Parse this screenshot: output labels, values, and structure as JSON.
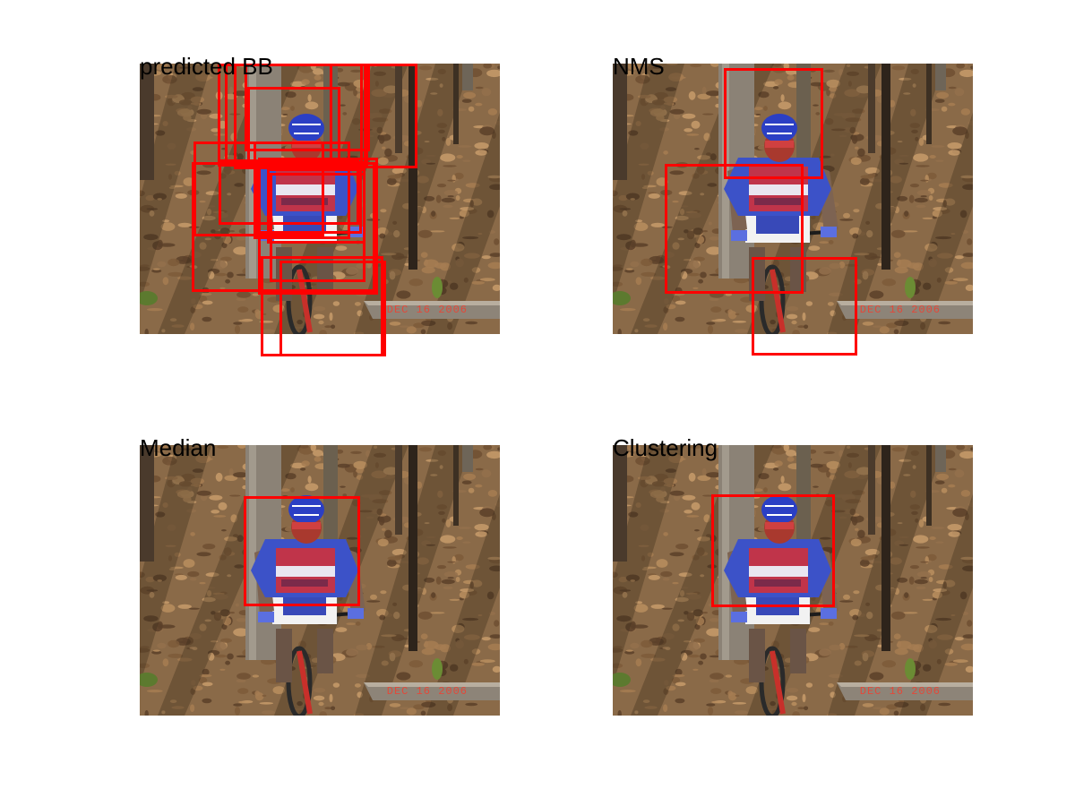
{
  "figure": {
    "panels": [
      {
        "title": "predicted BB",
        "date_stamp": "DEC 16 2006",
        "box_count": 16
      },
      {
        "title": "NMS",
        "date_stamp": "DEC 16 2006",
        "box_count": 3
      },
      {
        "title": "Median",
        "date_stamp": "DEC 16 2006",
        "box_count": 1
      },
      {
        "title": "Clustering",
        "date_stamp": "DEC 16 2006",
        "box_count": 1
      }
    ],
    "colors": {
      "box": "#ff0000",
      "background": "#ffffff",
      "stamp": "#e2493a"
    }
  }
}
